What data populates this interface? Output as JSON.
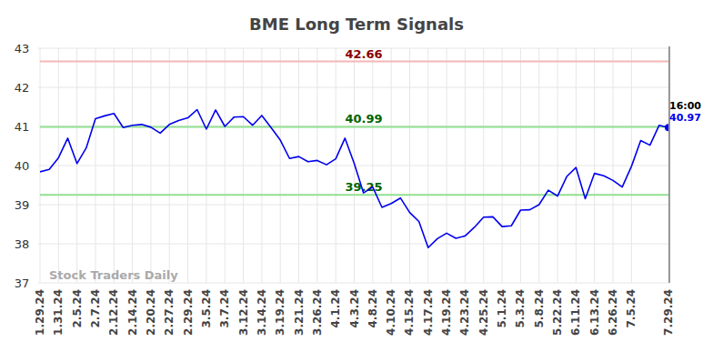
{
  "chart_data": {
    "type": "line",
    "title": "BME Long Term Signals",
    "categories": [
      "1.29.24",
      null,
      "1.31.24",
      null,
      "2.5.24",
      null,
      "2.7.24",
      null,
      "2.12.24",
      null,
      "2.14.24",
      null,
      "2.20.24",
      null,
      "2.27.24",
      null,
      "2.29.24",
      null,
      "3.5.24",
      null,
      "3.7.24",
      null,
      "3.12.24",
      null,
      "3.14.24",
      null,
      "3.19.24",
      null,
      "3.21.24",
      null,
      "3.26.24",
      null,
      "4.1.24",
      null,
      "4.3.24",
      null,
      "4.8.24",
      null,
      "4.10.24",
      null,
      "4.15.24",
      null,
      "4.17.24",
      null,
      "4.19.24",
      null,
      "4.23.24",
      null,
      "4.25.24",
      null,
      "5.1.24",
      null,
      "5.3.24",
      null,
      "5.8.24",
      null,
      "5.22.24",
      null,
      "6.11.24",
      null,
      "6.13.24",
      null,
      "6.26.24",
      null,
      "7.5.24",
      null,
      null,
      null,
      "7.29.24"
    ],
    "values": [
      39.84,
      39.9,
      40.2,
      40.7,
      40.05,
      40.45,
      41.2,
      41.27,
      41.33,
      40.97,
      41.03,
      41.05,
      40.98,
      40.83,
      41.05,
      41.15,
      41.22,
      41.43,
      40.93,
      41.42,
      41.0,
      41.24,
      41.25,
      41.03,
      41.28,
      40.97,
      40.65,
      40.18,
      40.23,
      40.1,
      40.13,
      40.02,
      40.17,
      40.7,
      40.05,
      39.3,
      39.45,
      38.93,
      39.03,
      39.17,
      38.8,
      38.57,
      37.9,
      38.13,
      38.27,
      38.14,
      38.2,
      38.42,
      38.68,
      38.69,
      38.44,
      38.46,
      38.86,
      38.87,
      39.0,
      39.37,
      39.22,
      39.72,
      39.95,
      39.15,
      39.8,
      39.74,
      39.62,
      39.45,
      39.98,
      40.64,
      40.52,
      41.03,
      40.97
    ],
    "color": "#0000ee",
    "ylim": [
      37,
      43
    ],
    "yticks": [
      37,
      38,
      39,
      40,
      41,
      42,
      43
    ],
    "grid": true,
    "annotations": [
      {
        "value": 42.66,
        "color": "#f4b6b6",
        "text_color": "#8b0000"
      },
      {
        "value": 40.99,
        "color": "#90e090",
        "text_color": "#006400"
      },
      {
        "value": 39.25,
        "color": "#90e090",
        "text_color": "#006400"
      }
    ],
    "last_time": "16:00",
    "watermark": "Stock Traders Daily"
  }
}
